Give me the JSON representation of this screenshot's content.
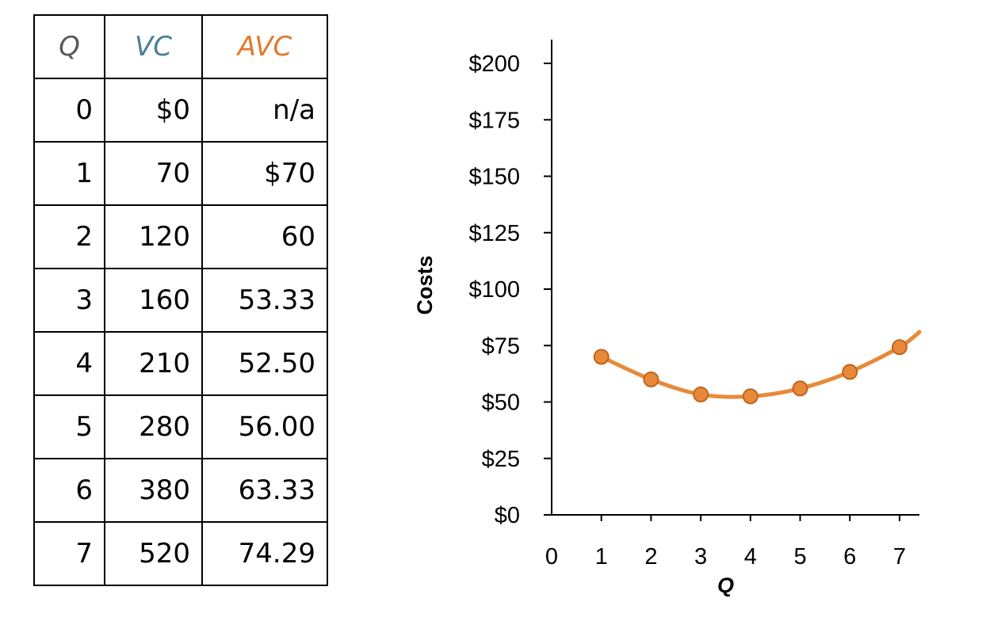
{
  "table": {
    "headers": [
      {
        "label": "Q",
        "color": "#5a5a5a"
      },
      {
        "label": "VC",
        "color": "#4a7f9a"
      },
      {
        "label": "AVC",
        "color": "#e07a2e"
      }
    ],
    "rows": [
      [
        "0",
        "$0",
        "n/a"
      ],
      [
        "1",
        "70",
        "$70"
      ],
      [
        "2",
        "120",
        "60"
      ],
      [
        "3",
        "160",
        "53.33"
      ],
      [
        "4",
        "210",
        "52.50"
      ],
      [
        "5",
        "280",
        "56.00"
      ],
      [
        "6",
        "380",
        "63.33"
      ],
      [
        "7",
        "520",
        "74.29"
      ]
    ]
  },
  "chart_data": {
    "type": "line",
    "title": "",
    "xlabel": "Q",
    "ylabel": "Costs",
    "x_ticks": [
      "0",
      "1",
      "2",
      "3",
      "4",
      "5",
      "6",
      "7"
    ],
    "y_ticks": [
      "$0",
      "$25",
      "$50",
      "$75",
      "$100",
      "$125",
      "$150",
      "$175",
      "$200"
    ],
    "xlim": [
      0,
      7.4
    ],
    "ylim": [
      0,
      200
    ],
    "grid": false,
    "series": [
      {
        "color": "#e8893a",
        "marker_stroke": "#c0651f",
        "x": [
          1,
          2,
          3,
          4,
          5,
          6,
          7
        ],
        "y": [
          70,
          60,
          53.33,
          52.5,
          56,
          63.33,
          74.29
        ],
        "curve_extension_end": {
          "x": 7.4,
          "y": 81
        }
      }
    ]
  }
}
